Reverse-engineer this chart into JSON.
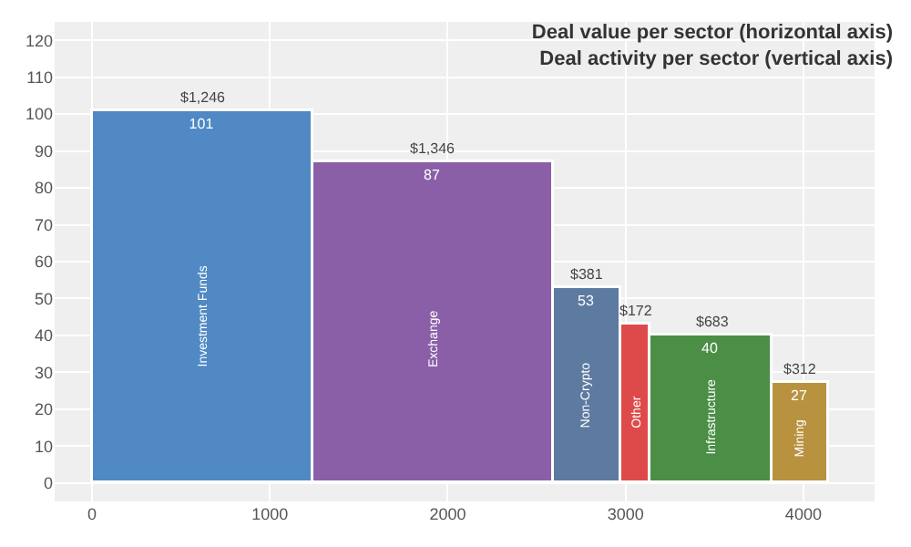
{
  "chart_data": {
    "type": "histogram",
    "title": "Deal value per sector (horizontal axis)\nDeal activity per sector (vertical axis)",
    "bins": [
      0,
      1246,
      2592,
      2973,
      3145,
      3828,
      4140
    ],
    "values": [
      101,
      87,
      53,
      43,
      40,
      27
    ],
    "value_labels": [
      "101",
      "87",
      "53",
      null,
      "40",
      "27"
    ],
    "colors": [
      "#5089c4",
      "#8a5fa8",
      "#5d7aa0",
      "#de4a4a",
      "#4b8e46",
      "#b8923f"
    ],
    "annotations": [
      {
        "text": "$1,246",
        "x": 623,
        "y": 101
      },
      {
        "text": "$1,346",
        "x": 1919,
        "y": 87
      },
      {
        "text": "$381",
        "x": 2782.5,
        "y": 53
      },
      {
        "text": "$172",
        "x": 3059,
        "y": 43
      },
      {
        "text": "$683",
        "x": 3486.5,
        "y": 40
      },
      {
        "text": "$312",
        "x": 3984,
        "y": 27
      },
      "Investment Funds",
      "Exchange",
      "Non-Crypto",
      "Other",
      "Infrastructure",
      "Mining"
    ],
    "xlim": [
      -210,
      4400
    ],
    "xticks": [
      0,
      1000,
      2000,
      3000,
      4000
    ],
    "ylim": [
      -5,
      125
    ],
    "yticks": [
      0,
      10,
      20,
      30,
      40,
      50,
      60,
      70,
      80,
      90,
      100,
      110,
      120
    ],
    "grid": true
  }
}
